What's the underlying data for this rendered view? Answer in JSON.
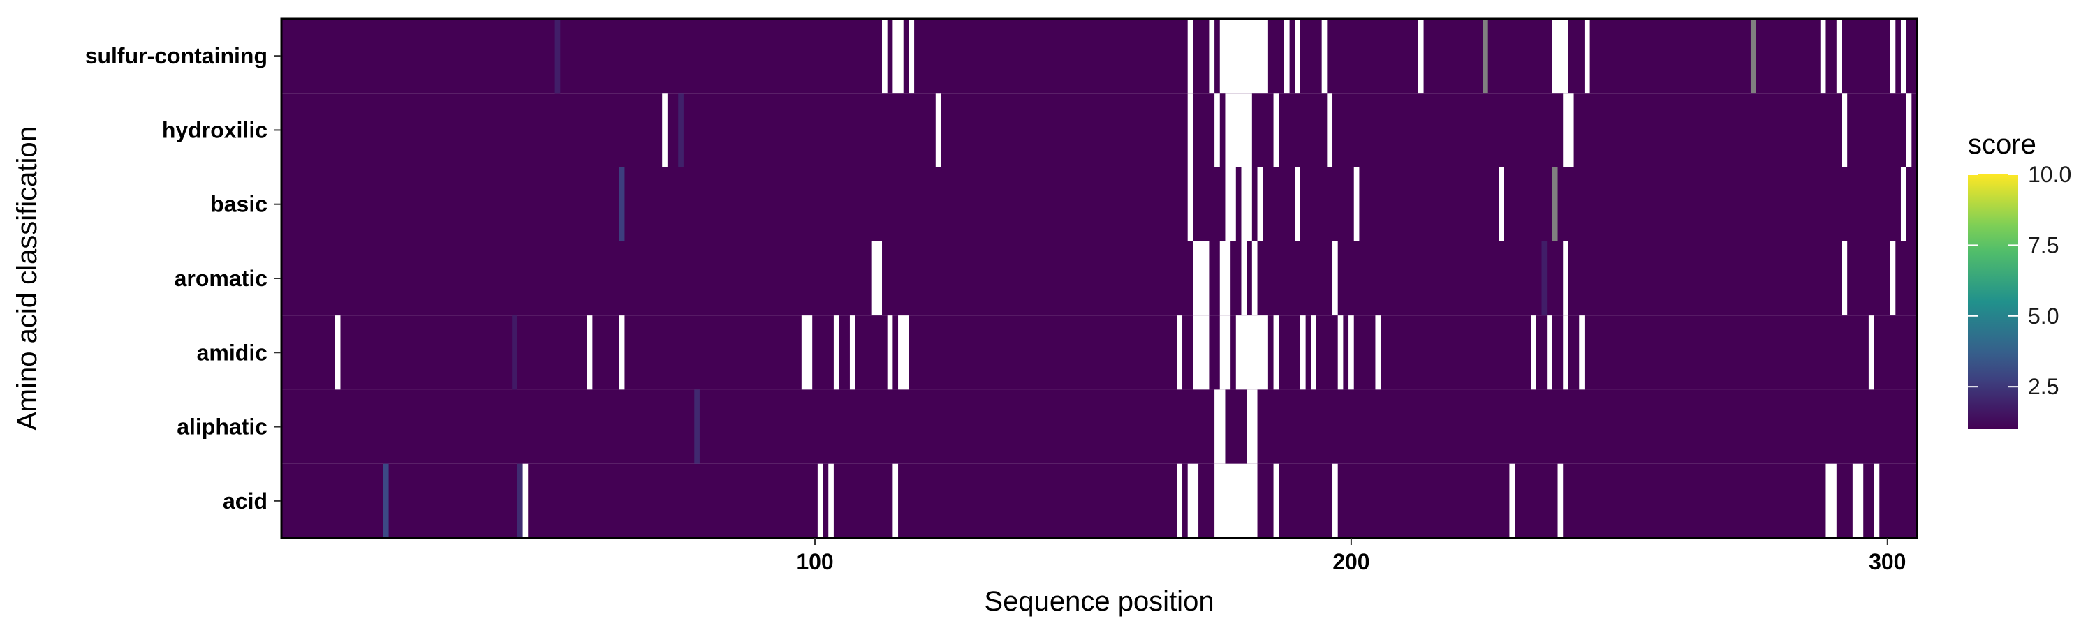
{
  "chart_data": {
    "type": "heatmap",
    "xlabel": "Sequence position",
    "ylabel": "Amino acid classification",
    "xlim": [
      1,
      305
    ],
    "x_ticks": [
      100,
      200,
      300
    ],
    "categories": [
      "sulfur-containing",
      "hydroxilic",
      "basic",
      "aromatic",
      "amidic",
      "aliphatic",
      "acid"
    ],
    "color_scale": {
      "name": "viridis",
      "title": "score",
      "range": [
        1,
        10
      ],
      "ticks": [
        2.5,
        5.0,
        7.5,
        10.0
      ],
      "tick_labels": [
        "2.5",
        "5.0",
        "7.5",
        "10.0"
      ],
      "base_color": "#440154",
      "missing_color": "#ffffff",
      "gray_color": "#808080"
    },
    "rows": [
      {
        "category": "sulfur-containing",
        "missing": [
          [
            113,
            113
          ],
          [
            115,
            116
          ],
          [
            118,
            118
          ],
          [
            170,
            170
          ],
          [
            174,
            174
          ],
          [
            176,
            184
          ],
          [
            188,
            188
          ],
          [
            190,
            190
          ],
          [
            195,
            195
          ],
          [
            213,
            213
          ],
          [
            238,
            240
          ],
          [
            244,
            244
          ],
          [
            288,
            288
          ],
          [
            291,
            291
          ],
          [
            301,
            301
          ],
          [
            303,
            303
          ]
        ],
        "gray": [
          225,
          275
        ]
      },
      {
        "category": "hydroxilic",
        "missing": [
          [
            72,
            72
          ],
          [
            123,
            123
          ],
          [
            170,
            170
          ],
          [
            175,
            175
          ],
          [
            177,
            181
          ],
          [
            186,
            186
          ],
          [
            196,
            196
          ],
          [
            240,
            241
          ],
          [
            292,
            292
          ],
          [
            304,
            304
          ]
        ],
        "gray": []
      },
      {
        "category": "basic",
        "missing": [
          [
            170,
            170
          ],
          [
            177,
            178
          ],
          [
            180,
            181
          ],
          [
            183,
            183
          ],
          [
            190,
            190
          ],
          [
            201,
            201
          ],
          [
            228,
            228
          ],
          [
            303,
            303
          ]
        ],
        "gray": [
          238
        ]
      },
      {
        "category": "aromatic",
        "missing": [
          [
            111,
            112
          ],
          [
            171,
            173
          ],
          [
            176,
            177
          ],
          [
            180,
            180
          ],
          [
            182,
            182
          ],
          [
            197,
            197
          ],
          [
            240,
            240
          ],
          [
            292,
            292
          ],
          [
            301,
            301
          ]
        ],
        "gray": []
      },
      {
        "category": "amidic",
        "missing": [
          [
            11,
            11
          ],
          [
            58,
            58
          ],
          [
            64,
            64
          ],
          [
            98,
            99
          ],
          [
            104,
            104
          ],
          [
            107,
            107
          ],
          [
            114,
            114
          ],
          [
            116,
            117
          ],
          [
            168,
            168
          ],
          [
            171,
            173
          ],
          [
            176,
            177
          ],
          [
            179,
            184
          ],
          [
            186,
            186
          ],
          [
            191,
            191
          ],
          [
            193,
            193
          ],
          [
            198,
            198
          ],
          [
            200,
            200
          ],
          [
            205,
            205
          ],
          [
            234,
            234
          ],
          [
            237,
            237
          ],
          [
            240,
            240
          ],
          [
            243,
            243
          ],
          [
            297,
            297
          ]
        ],
        "gray": []
      },
      {
        "category": "aliphatic",
        "missing": [
          [
            175,
            176
          ],
          [
            181,
            182
          ]
        ],
        "gray": []
      },
      {
        "category": "acid",
        "missing": [
          [
            46,
            46
          ],
          [
            101,
            101
          ],
          [
            103,
            103
          ],
          [
            115,
            115
          ],
          [
            168,
            168
          ],
          [
            170,
            171
          ],
          [
            175,
            182
          ],
          [
            186,
            186
          ],
          [
            197,
            197
          ],
          [
            230,
            230
          ],
          [
            239,
            239
          ],
          [
            289,
            290
          ],
          [
            294,
            295
          ],
          [
            298,
            298
          ]
        ],
        "gray": []
      }
    ],
    "highlights": [
      {
        "category": "acid",
        "x": 20,
        "value": 3.0
      },
      {
        "category": "acid",
        "x": 45,
        "value": 2.2
      },
      {
        "category": "basic",
        "x": 64,
        "value": 2.7
      },
      {
        "category": "aliphatic",
        "x": 78,
        "value": 2.1
      },
      {
        "category": "hydroxilic",
        "x": 75,
        "value": 1.9
      },
      {
        "category": "sulfur-containing",
        "x": 52,
        "value": 1.8
      },
      {
        "category": "amidic",
        "x": 44,
        "value": 1.7
      },
      {
        "category": "aromatic",
        "x": 236,
        "value": 1.8
      }
    ]
  }
}
